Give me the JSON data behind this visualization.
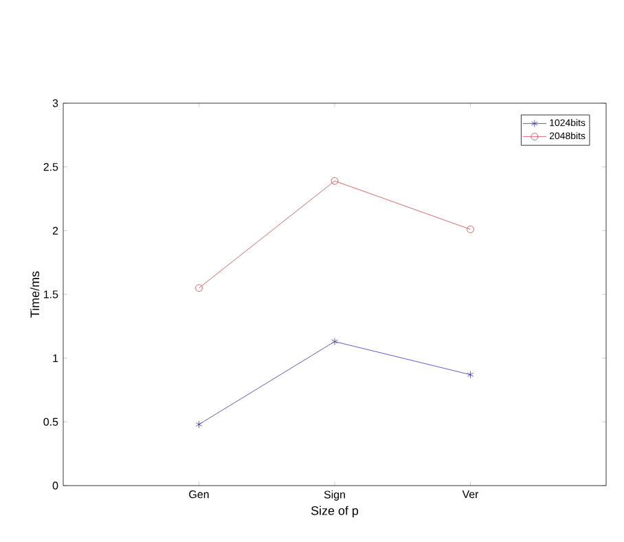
{
  "chart_data": {
    "type": "line",
    "xlabel": "Size of p",
    "ylabel": "Time/ms",
    "categories": [
      "Gen",
      "Sign",
      "Ver"
    ],
    "series": [
      {
        "name": "1024bits",
        "color": "#3333aa",
        "values": [
          0.48,
          1.13,
          0.87
        ],
        "marker": "cross"
      },
      {
        "name": "2048bits",
        "color": "#cc4444",
        "values": [
          1.55,
          2.39,
          2.01
        ],
        "marker": "circle"
      }
    ],
    "ylim": [
      0,
      3
    ],
    "yticks": [
      0,
      0.5,
      1,
      1.5,
      2,
      2.5,
      3
    ],
    "legend": "top right",
    "grid": false
  }
}
